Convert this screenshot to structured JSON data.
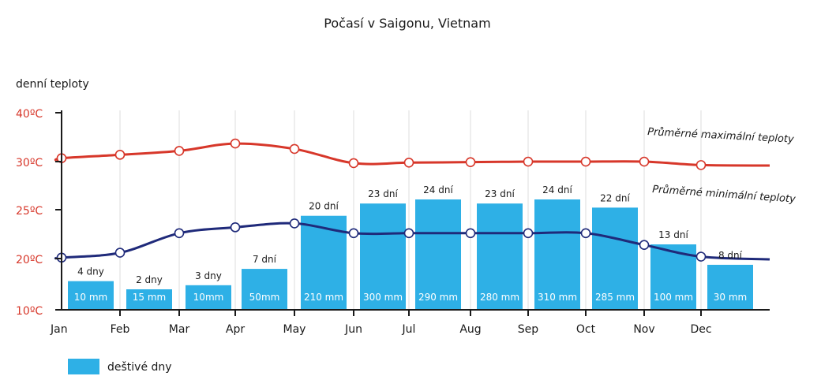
{
  "chart_data": {
    "type": "bar",
    "title": "Počasí v Saigonu, Vietnam",
    "ylabel": "denní teploty",
    "y_ticks": [
      "10ºC",
      "20ºC",
      "25ºC",
      "30ºC",
      "40ºC"
    ],
    "categories": [
      "Jan",
      "Feb",
      "Mar",
      "Apr",
      "May",
      "Jun",
      "Jul",
      "Aug",
      "Sep",
      "Oct",
      "Nov",
      "Dec"
    ],
    "rainy_days": [
      4,
      2,
      3,
      7,
      20,
      23,
      24,
      23,
      24,
      22,
      13,
      8
    ],
    "rainy_days_labels": [
      "4 dny",
      "2 dny",
      "3 dny",
      "7 dní",
      "20 dní",
      "23 dní",
      "24 dní",
      "23 dní",
      "24 dní",
      "22 dní",
      "13 dní",
      "8 dní"
    ],
    "rainfall_labels": [
      "10 mm",
      "15 mm",
      "10mm",
      "50mm",
      "210 mm",
      "300 mm",
      "290 mm",
      "280  mm",
      "310 mm",
      "285 mm",
      "100 mm",
      "30 mm"
    ],
    "series": [
      {
        "name": "Průměrné maximální teploty",
        "color": "#d7372a",
        "values": [
          31.5,
          32.2,
          33.0,
          34.5,
          33.4,
          30.5,
          30.6,
          30.7,
          30.8,
          30.8,
          30.8,
          30.1
        ]
      },
      {
        "name": "Průměrné minimální teploty",
        "color": "#1f2a7a",
        "values": [
          20.5,
          21.0,
          23.0,
          23.6,
          24.0,
          23.0,
          23.0,
          23.0,
          23.0,
          23.0,
          21.8,
          20.6
        ]
      }
    ],
    "legend": {
      "label": "deštivé dny",
      "color": "#2eb0e6",
      "position": "bottom-left"
    }
  }
}
